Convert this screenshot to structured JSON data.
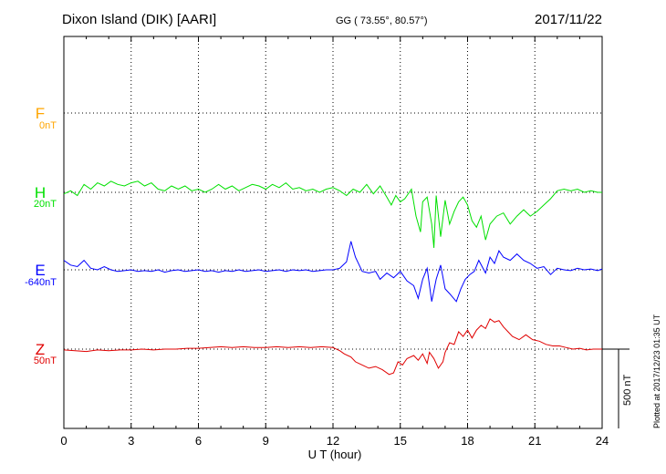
{
  "header": {
    "station": "Dixon Island (DIK)  [AARI]",
    "coords": "GG ( 73.55°,  80.57°)",
    "date": "2017/11/22"
  },
  "footer": {
    "plotted": "Plotted at 2017/12/23 01:35 UT"
  },
  "scale_bar": {
    "label": "500 nT"
  },
  "colors": {
    "F": "#ffa500",
    "H": "#00e000",
    "E": "#0000ff",
    "Z": "#e00000",
    "grid": "#000000",
    "text": "#000000"
  },
  "chart_data": {
    "type": "line",
    "xlabel": "U T (hour)",
    "xlim": [
      0,
      24
    ],
    "xticks": [
      0,
      3,
      6,
      9,
      12,
      15,
      18,
      21,
      24
    ],
    "grid": true,
    "baseline_units": "nT",
    "series": [
      {
        "name": "F",
        "baseline": "0nT",
        "points": []
      },
      {
        "name": "H",
        "baseline": "20nT",
        "points": [
          [
            0.0,
            -10
          ],
          [
            0.3,
            10
          ],
          [
            0.6,
            -20
          ],
          [
            0.9,
            50
          ],
          [
            1.2,
            20
          ],
          [
            1.5,
            60
          ],
          [
            1.8,
            40
          ],
          [
            2.1,
            70
          ],
          [
            2.4,
            50
          ],
          [
            2.7,
            40
          ],
          [
            3.0,
            60
          ],
          [
            3.3,
            70
          ],
          [
            3.6,
            40
          ],
          [
            3.9,
            60
          ],
          [
            4.2,
            20
          ],
          [
            4.5,
            10
          ],
          [
            4.8,
            40
          ],
          [
            5.1,
            20
          ],
          [
            5.4,
            40
          ],
          [
            5.7,
            10
          ],
          [
            6.0,
            20
          ],
          [
            6.3,
            0
          ],
          [
            6.6,
            20
          ],
          [
            6.9,
            50
          ],
          [
            7.2,
            20
          ],
          [
            7.5,
            40
          ],
          [
            7.8,
            10
          ],
          [
            8.1,
            30
          ],
          [
            8.4,
            50
          ],
          [
            8.7,
            40
          ],
          [
            9.0,
            20
          ],
          [
            9.3,
            50
          ],
          [
            9.6,
            30
          ],
          [
            9.9,
            60
          ],
          [
            10.2,
            20
          ],
          [
            10.5,
            30
          ],
          [
            10.8,
            10
          ],
          [
            11.1,
            20
          ],
          [
            11.4,
            0
          ],
          [
            11.7,
            20
          ],
          [
            12.0,
            30
          ],
          [
            12.3,
            10
          ],
          [
            12.6,
            -20
          ],
          [
            12.9,
            20
          ],
          [
            13.2,
            0
          ],
          [
            13.5,
            50
          ],
          [
            13.8,
            -10
          ],
          [
            14.1,
            40
          ],
          [
            14.4,
            -30
          ],
          [
            14.6,
            -80
          ],
          [
            14.8,
            -20
          ],
          [
            15.0,
            -60
          ],
          [
            15.2,
            -40
          ],
          [
            15.5,
            20
          ],
          [
            15.7,
            -150
          ],
          [
            15.9,
            -250
          ],
          [
            16.0,
            -60
          ],
          [
            16.2,
            -30
          ],
          [
            16.4,
            -200
          ],
          [
            16.5,
            -350
          ],
          [
            16.6,
            -20
          ],
          [
            16.8,
            -280
          ],
          [
            17.0,
            -50
          ],
          [
            17.2,
            -200
          ],
          [
            17.4,
            -120
          ],
          [
            17.6,
            -60
          ],
          [
            17.8,
            -30
          ],
          [
            18.0,
            -80
          ],
          [
            18.2,
            -180
          ],
          [
            18.4,
            -220
          ],
          [
            18.6,
            -150
          ],
          [
            18.8,
            -300
          ],
          [
            19.0,
            -200
          ],
          [
            19.3,
            -150
          ],
          [
            19.6,
            -130
          ],
          [
            19.9,
            -200
          ],
          [
            20.2,
            -150
          ],
          [
            20.5,
            -110
          ],
          [
            20.8,
            -150
          ],
          [
            21.1,
            -120
          ],
          [
            21.4,
            -80
          ],
          [
            21.7,
            -40
          ],
          [
            22.0,
            10
          ],
          [
            22.3,
            20
          ],
          [
            22.6,
            10
          ],
          [
            22.9,
            20
          ],
          [
            23.2,
            0
          ],
          [
            23.5,
            10
          ],
          [
            23.8,
            0
          ],
          [
            24.0,
            0
          ]
        ]
      },
      {
        "name": "E",
        "baseline": "-640nT",
        "points": [
          [
            0.0,
            60
          ],
          [
            0.3,
            30
          ],
          [
            0.6,
            20
          ],
          [
            0.9,
            60
          ],
          [
            1.2,
            10
          ],
          [
            1.5,
            0
          ],
          [
            1.8,
            20
          ],
          [
            2.1,
            0
          ],
          [
            2.4,
            -10
          ],
          [
            2.7,
            -5
          ],
          [
            3.0,
            0
          ],
          [
            3.3,
            -10
          ],
          [
            3.6,
            -5
          ],
          [
            3.9,
            -10
          ],
          [
            4.2,
            0
          ],
          [
            4.5,
            -15
          ],
          [
            4.8,
            -5
          ],
          [
            5.1,
            0
          ],
          [
            5.4,
            -10
          ],
          [
            5.7,
            -5
          ],
          [
            6.0,
            0
          ],
          [
            6.3,
            -10
          ],
          [
            6.6,
            -5
          ],
          [
            6.9,
            -15
          ],
          [
            7.2,
            -5
          ],
          [
            7.5,
            -10
          ],
          [
            7.8,
            0
          ],
          [
            8.1,
            -10
          ],
          [
            8.4,
            -5
          ],
          [
            8.7,
            0
          ],
          [
            9.0,
            -10
          ],
          [
            9.3,
            -5
          ],
          [
            9.6,
            0
          ],
          [
            9.9,
            -10
          ],
          [
            10.2,
            0
          ],
          [
            10.5,
            -5
          ],
          [
            10.8,
            0
          ],
          [
            11.1,
            -10
          ],
          [
            11.4,
            -5
          ],
          [
            11.7,
            0
          ],
          [
            12.0,
            0
          ],
          [
            12.3,
            10
          ],
          [
            12.6,
            50
          ],
          [
            12.8,
            180
          ],
          [
            13.0,
            80
          ],
          [
            13.3,
            -10
          ],
          [
            13.6,
            -20
          ],
          [
            13.9,
            -10
          ],
          [
            14.1,
            -60
          ],
          [
            14.4,
            -20
          ],
          [
            14.7,
            -50
          ],
          [
            15.0,
            -10
          ],
          [
            15.3,
            -70
          ],
          [
            15.6,
            -100
          ],
          [
            15.8,
            -180
          ],
          [
            16.0,
            -60
          ],
          [
            16.2,
            10
          ],
          [
            16.4,
            -200
          ],
          [
            16.6,
            -60
          ],
          [
            16.8,
            30
          ],
          [
            17.0,
            -120
          ],
          [
            17.2,
            -150
          ],
          [
            17.5,
            -200
          ],
          [
            17.7,
            -120
          ],
          [
            17.9,
            -60
          ],
          [
            18.1,
            -30
          ],
          [
            18.3,
            -10
          ],
          [
            18.5,
            60
          ],
          [
            18.8,
            -20
          ],
          [
            19.0,
            80
          ],
          [
            19.2,
            40
          ],
          [
            19.4,
            120
          ],
          [
            19.6,
            80
          ],
          [
            19.9,
            60
          ],
          [
            20.2,
            100
          ],
          [
            20.5,
            60
          ],
          [
            20.8,
            40
          ],
          [
            21.1,
            10
          ],
          [
            21.4,
            20
          ],
          [
            21.7,
            -30
          ],
          [
            22.0,
            10
          ],
          [
            22.3,
            0
          ],
          [
            22.6,
            -5
          ],
          [
            22.9,
            10
          ],
          [
            23.2,
            0
          ],
          [
            23.5,
            5
          ],
          [
            23.8,
            -5
          ],
          [
            24.0,
            5
          ]
        ]
      },
      {
        "name": "Z",
        "baseline": "50nT",
        "points": [
          [
            0.0,
            -5
          ],
          [
            0.5,
            -10
          ],
          [
            1.0,
            -15
          ],
          [
            1.5,
            -5
          ],
          [
            2.0,
            -10
          ],
          [
            2.5,
            -5
          ],
          [
            3.0,
            -5
          ],
          [
            3.5,
            0
          ],
          [
            4.0,
            -5
          ],
          [
            4.5,
            0
          ],
          [
            5.0,
            0
          ],
          [
            5.5,
            5
          ],
          [
            6.0,
            5
          ],
          [
            6.5,
            10
          ],
          [
            7.0,
            15
          ],
          [
            7.5,
            10
          ],
          [
            8.0,
            15
          ],
          [
            8.5,
            10
          ],
          [
            9.0,
            10
          ],
          [
            9.5,
            15
          ],
          [
            10.0,
            10
          ],
          [
            10.5,
            15
          ],
          [
            11.0,
            10
          ],
          [
            11.5,
            15
          ],
          [
            12.0,
            10
          ],
          [
            12.3,
            -10
          ],
          [
            12.5,
            -30
          ],
          [
            12.8,
            -50
          ],
          [
            13.0,
            -80
          ],
          [
            13.3,
            -100
          ],
          [
            13.6,
            -120
          ],
          [
            13.9,
            -110
          ],
          [
            14.2,
            -130
          ],
          [
            14.5,
            -160
          ],
          [
            14.7,
            -150
          ],
          [
            14.9,
            -80
          ],
          [
            15.1,
            -100
          ],
          [
            15.3,
            -60
          ],
          [
            15.6,
            -40
          ],
          [
            15.8,
            -70
          ],
          [
            16.0,
            -30
          ],
          [
            16.2,
            -90
          ],
          [
            16.3,
            -20
          ],
          [
            16.5,
            -60
          ],
          [
            16.7,
            -120
          ],
          [
            16.9,
            -80
          ],
          [
            17.0,
            -20
          ],
          [
            17.2,
            40
          ],
          [
            17.4,
            30
          ],
          [
            17.6,
            110
          ],
          [
            17.8,
            80
          ],
          [
            18.0,
            120
          ],
          [
            18.2,
            70
          ],
          [
            18.4,
            120
          ],
          [
            18.6,
            150
          ],
          [
            18.8,
            130
          ],
          [
            19.0,
            190
          ],
          [
            19.2,
            170
          ],
          [
            19.4,
            180
          ],
          [
            19.6,
            140
          ],
          [
            19.8,
            110
          ],
          [
            20.0,
            80
          ],
          [
            20.3,
            60
          ],
          [
            20.6,
            90
          ],
          [
            20.9,
            60
          ],
          [
            21.2,
            50
          ],
          [
            21.5,
            30
          ],
          [
            21.8,
            20
          ],
          [
            22.1,
            20
          ],
          [
            22.4,
            10
          ],
          [
            22.7,
            0
          ],
          [
            23.0,
            5
          ],
          [
            23.3,
            -5
          ],
          [
            23.6,
            0
          ],
          [
            24.0,
            0
          ]
        ]
      }
    ]
  }
}
